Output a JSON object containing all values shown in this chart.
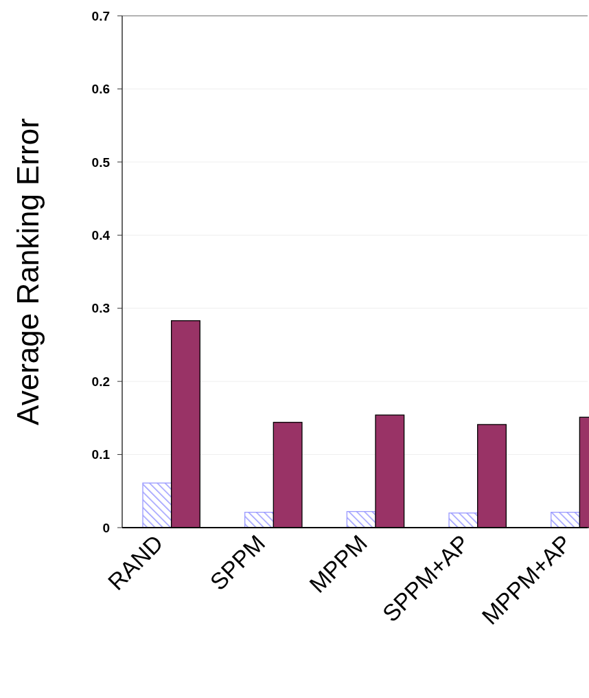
{
  "chart_data": {
    "type": "bar",
    "ylabel": "Average Ranking Error",
    "categories": [
      "RAND",
      "SPPM",
      "MPPM",
      "SPPM+AP",
      "MPPM+AP"
    ],
    "series": [
      {
        "color": "#9999ff",
        "values": [
          0.061,
          0.021,
          0.022,
          0.02,
          0.021
        ]
      },
      {
        "color": "#993366",
        "values": [
          0.283,
          0.144,
          0.154,
          0.141,
          0.151
        ]
      }
    ],
    "ylim": [
      0,
      0.7
    ],
    "yticks": [
      0,
      0.1,
      0.2,
      0.3,
      0.4,
      0.5,
      0.6,
      0.7
    ],
    "grid": "y"
  }
}
